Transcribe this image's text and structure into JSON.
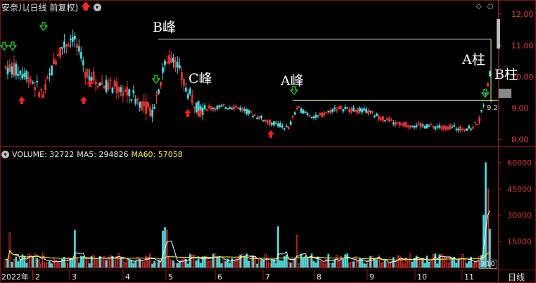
{
  "header": {
    "title": "安奈儿(日线 前复权)",
    "arrow_icon": "red-up-arrow",
    "menu_icon": "chevron-down-circle"
  },
  "toolbar_icons": [
    "diamond-icon",
    "circle-icon"
  ],
  "price_axis": {
    "ticks": [
      "12.00",
      "11.00",
      "10.00",
      "9.00",
      "8.00"
    ],
    "current_price": "9.2"
  },
  "annotations": {
    "b_peak": "B峰",
    "c_peak": "C峰",
    "a_peak": "A峰",
    "a_bar": "A柱",
    "b_bar": "B柱"
  },
  "volume_header": {
    "volume_label": "VOLUME: 32722",
    "ma5_label": "MA5: 294826",
    "ma60_label": "MA60: 57058"
  },
  "volume_axis": {
    "ticks": [
      "60000",
      "45000",
      "30000",
      "15000"
    ],
    "scale_badge": "X10"
  },
  "time_axis": {
    "labels": [
      "2022年",
      "2",
      "3",
      "4",
      "5",
      "6",
      "7",
      "8",
      "9",
      "10",
      "11"
    ],
    "period_button": "日线"
  },
  "colors": {
    "up": "#ff3a3a",
    "down": "#4dd7d7",
    "line_white": "#ffffff",
    "line_yellow": "#ffef4a",
    "horizontal_line": "#d8f08a",
    "signal_up": "#ff2020",
    "signal_down": "#28e028"
  },
  "chart_data": {
    "type": "candlestick",
    "price_ylim": [
      7.75,
      12.3
    ],
    "volume_ylim": [
      0,
      66000
    ],
    "key_levels": [
      {
        "label": "B峰",
        "price": 11.2
      },
      {
        "label": "A峰",
        "price": 9.25
      }
    ],
    "months": [
      "2022年",
      "2",
      "3",
      "4",
      "5",
      "6",
      "7",
      "8",
      "9",
      "10",
      "11"
    ]
  }
}
